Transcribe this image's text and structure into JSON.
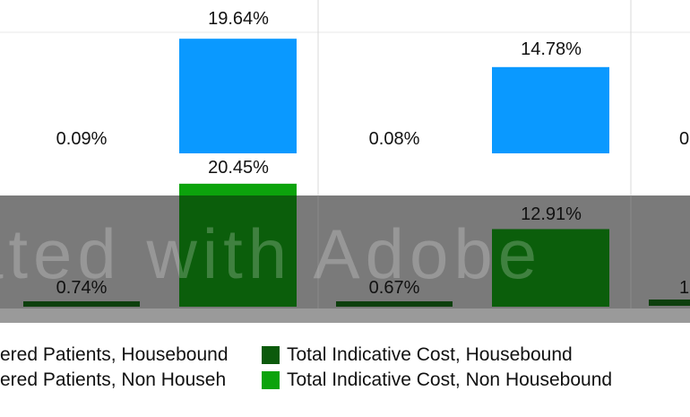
{
  "chart_data": {
    "type": "bar",
    "upper_panel": {
      "series": [
        {
          "name": "",
          "color": "#ffffff",
          "values": [
            0.09,
            0.08,
            null
          ]
        },
        {
          "name": "",
          "color": "#0a99ff",
          "values": [
            19.64,
            14.78,
            null
          ]
        }
      ],
      "labels": [
        "19.64%",
        "0.09%",
        "14.78%",
        "0.08%",
        "0"
      ],
      "ylim": [
        0,
        21
      ]
    },
    "lower_panel": {
      "series": [
        {
          "name": "",
          "color": "#0d3f0d",
          "values": [
            0.74,
            0.67,
            null
          ]
        },
        {
          "name": "",
          "color": "#0b5e0b",
          "values": [
            20.45,
            12.91,
            null
          ]
        }
      ],
      "labels": [
        "20.45%",
        "0.74%",
        "12.91%",
        "0.67%",
        "1"
      ],
      "ylim": [
        0,
        21
      ]
    },
    "legend": [
      {
        "label": "ered Patients, Housebound",
        "color": "#ffffff"
      },
      {
        "label": "ered Patients, Non Househ",
        "color": "#ffffff"
      },
      {
        "label": "Total Indicative Cost, Housebound",
        "color": "#0b5a0b"
      },
      {
        "label": "Total Indicative Cost, Non Housebound",
        "color": "#0ca30c"
      }
    ],
    "watermark": "ated with Adobe"
  }
}
